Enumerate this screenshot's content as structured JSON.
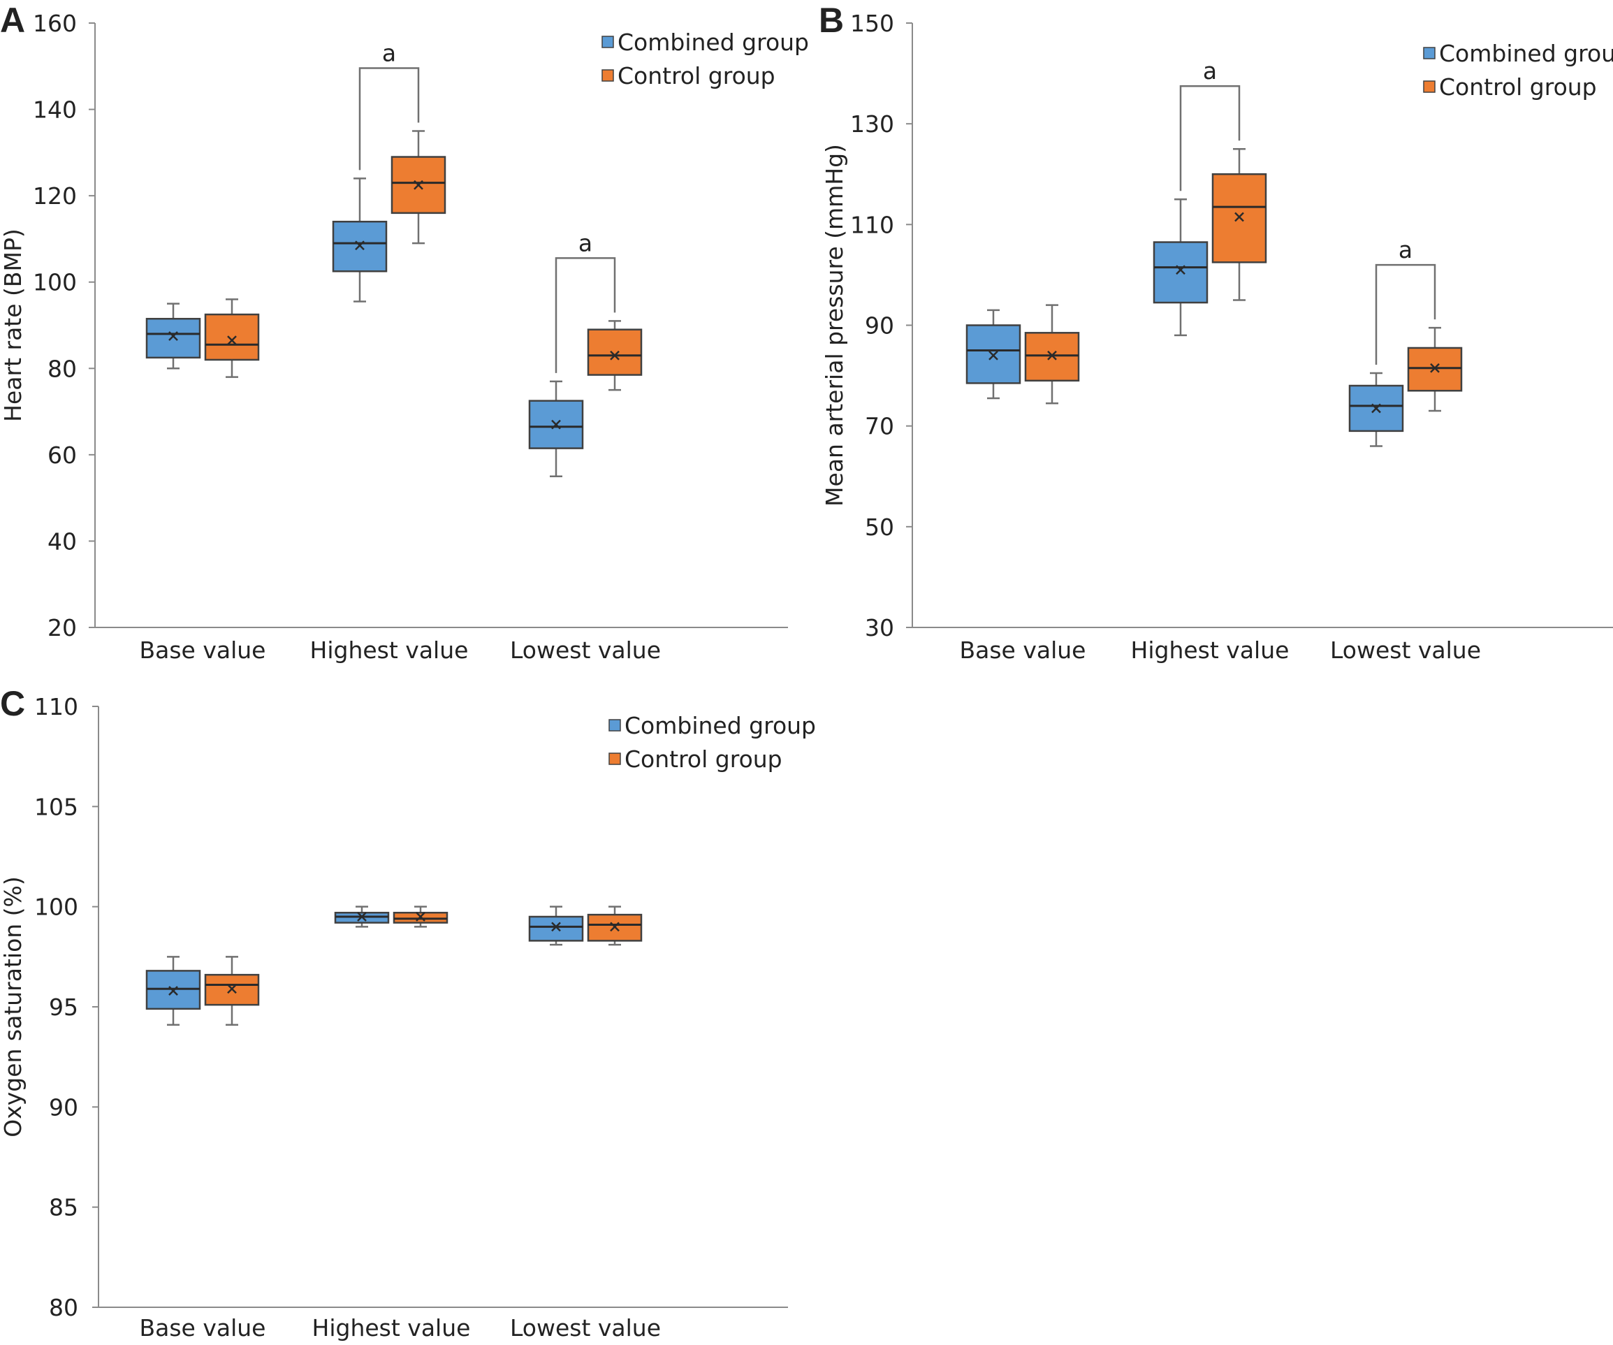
{
  "colors": {
    "combined": "#5b9bd5",
    "control": "#ed7d31"
  },
  "legend": {
    "combined": "Combined group",
    "control": "Control group"
  },
  "chart_data": [
    {
      "panel": "A",
      "type": "box",
      "ylabel": "Heart rate (BMP)",
      "ylim": [
        20,
        160
      ],
      "yticks": [
        20,
        40,
        60,
        80,
        100,
        120,
        140,
        160
      ],
      "categories": [
        "Base value",
        "Highest value",
        "Lowest value"
      ],
      "legend_position": "top-right",
      "series": [
        {
          "name": "Combined group",
          "boxes": [
            {
              "min": 80,
              "q1": 82.5,
              "median": 88,
              "q3": 91.5,
              "max": 95,
              "mean": 87.5
            },
            {
              "min": 95.5,
              "q1": 102.5,
              "median": 109,
              "q3": 114,
              "max": 124,
              "mean": 108.5
            },
            {
              "min": 55,
              "q1": 61.5,
              "median": 66.5,
              "q3": 72.5,
              "max": 77,
              "mean": 67
            }
          ]
        },
        {
          "name": "Control group",
          "boxes": [
            {
              "min": 78,
              "q1": 82,
              "median": 85.5,
              "q3": 92.5,
              "max": 96,
              "mean": 86.5
            },
            {
              "min": 109,
              "q1": 116,
              "median": 123,
              "q3": 129,
              "max": 135,
              "mean": 122.5
            },
            {
              "min": 75,
              "q1": 78.5,
              "median": 83,
              "q3": 89,
              "max": 91,
              "mean": 83
            }
          ]
        }
      ],
      "significance": [
        {
          "category": 1,
          "label": "a"
        },
        {
          "category": 2,
          "label": "a"
        }
      ]
    },
    {
      "panel": "B",
      "type": "box",
      "ylabel": "Mean arterial pressure (mmHg)",
      "ylim": [
        30,
        150
      ],
      "yticks": [
        30,
        50,
        70,
        90,
        110,
        130,
        150
      ],
      "categories": [
        "Base value",
        "Highest value",
        "Lowest value"
      ],
      "legend_position": "top-right",
      "series": [
        {
          "name": "Combined group",
          "boxes": [
            {
              "min": 75.5,
              "q1": 78.5,
              "median": 85,
              "q3": 90,
              "max": 93,
              "mean": 84
            },
            {
              "min": 88,
              "q1": 94.5,
              "median": 101.5,
              "q3": 106.5,
              "max": 115,
              "mean": 101
            },
            {
              "min": 66,
              "q1": 69,
              "median": 74,
              "q3": 78,
              "max": 80.5,
              "mean": 73.5
            }
          ]
        },
        {
          "name": "Control group",
          "boxes": [
            {
              "min": 74.5,
              "q1": 79,
              "median": 84,
              "q3": 88.5,
              "max": 94,
              "mean": 84
            },
            {
              "min": 95,
              "q1": 102.5,
              "median": 113.5,
              "q3": 120,
              "max": 125,
              "mean": 111.5
            },
            {
              "min": 73,
              "q1": 77,
              "median": 81.5,
              "q3": 85.5,
              "max": 89.5,
              "mean": 81.5
            }
          ]
        }
      ],
      "significance": [
        {
          "category": 1,
          "label": "a"
        },
        {
          "category": 2,
          "label": "a"
        }
      ]
    },
    {
      "panel": "C",
      "type": "box",
      "ylabel": "Oxygen saturation (%)",
      "ylim": [
        80,
        110
      ],
      "yticks": [
        80,
        85,
        90,
        95,
        100,
        105,
        110
      ],
      "categories": [
        "Base value",
        "Highest value",
        "Lowest value"
      ],
      "legend_position": "top-right",
      "series": [
        {
          "name": "Combined group",
          "boxes": [
            {
              "min": 94.1,
              "q1": 94.9,
              "median": 95.9,
              "q3": 96.8,
              "max": 97.5,
              "mean": 95.8
            },
            {
              "min": 99,
              "q1": 99.2,
              "median": 99.5,
              "q3": 99.7,
              "max": 100,
              "mean": 99.5
            },
            {
              "min": 98.1,
              "q1": 98.3,
              "median": 99,
              "q3": 99.5,
              "max": 100,
              "mean": 99
            }
          ]
        },
        {
          "name": "Control group",
          "boxes": [
            {
              "min": 94.1,
              "q1": 95.1,
              "median": 96.1,
              "q3": 96.6,
              "max": 97.5,
              "mean": 95.9
            },
            {
              "min": 99,
              "q1": 99.2,
              "median": 99.4,
              "q3": 99.7,
              "max": 100,
              "mean": 99.5
            },
            {
              "min": 98.1,
              "q1": 98.3,
              "median": 99.1,
              "q3": 99.6,
              "max": 100,
              "mean": 99
            }
          ]
        }
      ],
      "significance": []
    }
  ]
}
